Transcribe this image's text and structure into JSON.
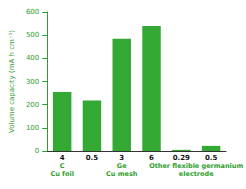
{
  "chart_data": {
    "type": "bar",
    "y_label": "Volume capacity (mA h cm⁻³)",
    "categories": [
      "4",
      "0.5",
      "3",
      "6",
      "0.29",
      "0.5"
    ],
    "values": [
      255,
      218,
      485,
      540,
      5,
      22
    ],
    "color": "#33a833",
    "ylim": [
      0,
      600
    ],
    "yticks": [
      0,
      100,
      200,
      300,
      400,
      500,
      600
    ],
    "grid": false,
    "groups": [
      {
        "lines": [
          "C",
          "Cu foil"
        ],
        "count": 1
      },
      {
        "lines": [
          "Ge",
          "Cu mesh"
        ],
        "count": 3
      },
      {
        "lines": [
          "Other flexible germanium",
          "electrode"
        ],
        "count": 2
      }
    ]
  }
}
